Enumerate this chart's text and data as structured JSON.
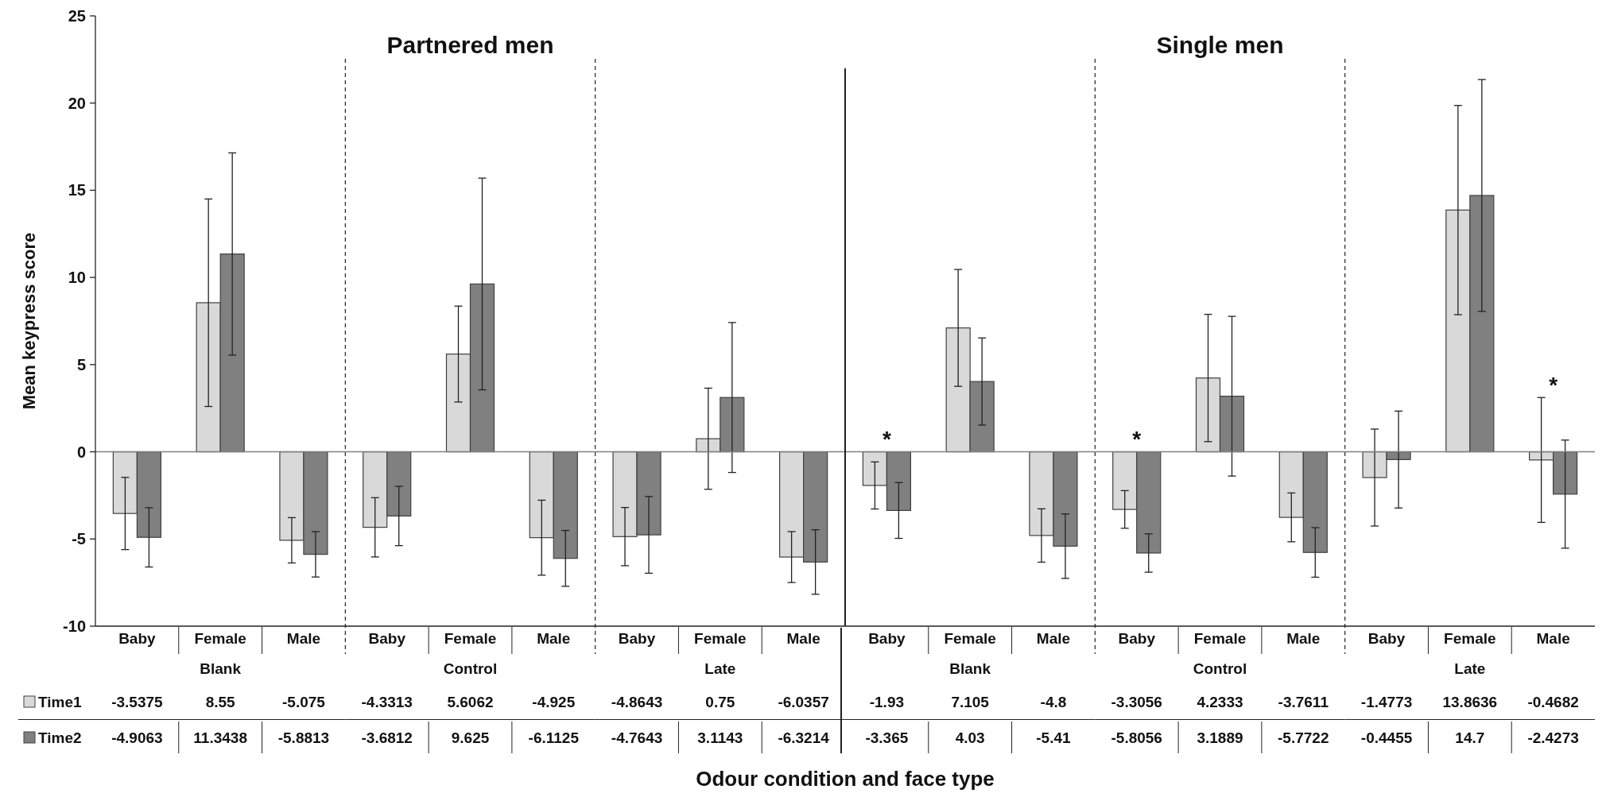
{
  "chart_data": [
    {
      "type": "bar",
      "ylabel": "Mean keypress score",
      "xlabel": "Blank",
      "categories": [
        "Baby",
        "Female",
        "Male"
      ],
      "series": [
        {
          "name": "Time1",
          "color": "#d9d9d9",
          "values": [
            -3.5375,
            8.55,
            -5.075
          ],
          "errors": [
            2.07,
            5.95,
            1.3
          ]
        },
        {
          "name": "Time2",
          "color": "#808080",
          "values": [
            -4.9063,
            11.3438,
            -5.8813
          ],
          "errors": [
            1.7,
            5.8,
            1.3
          ]
        }
      ],
      "ylim": [
        -10,
        25
      ],
      "yticks": [
        -10,
        -5,
        0,
        5,
        10,
        15,
        20,
        25
      ],
      "data_labels": true,
      "legend": "bottom",
      "annotations": [
        "Odour condition and face type"
      ]
    },
    {
      "type": "bar",
      "title": "Partnered men",
      "xlabel": "Control",
      "categories": [
        "Baby",
        "Female",
        "Male"
      ],
      "series": [
        {
          "color": "#d9d9d9",
          "values": [
            -4.3313,
            5.6062,
            -4.925
          ],
          "errors": [
            1.7,
            2.75,
            2.15
          ]
        },
        {
          "color": "#808080",
          "values": [
            -3.6812,
            9.625,
            -6.1125
          ],
          "errors": [
            1.7,
            6.07,
            1.6
          ]
        }
      ],
      "ylim": [
        -10,
        25
      ],
      "tick_labels": "x",
      "data_labels": true
    },
    {
      "type": "bar",
      "xlabel": "Late",
      "categories": [
        "Baby",
        "Female",
        "Male"
      ],
      "series": [
        {
          "color": "#d9d9d9",
          "values": [
            -4.8643,
            0.75,
            -6.0357
          ],
          "errors": [
            1.67,
            2.9,
            1.46
          ]
        },
        {
          "color": "#808080",
          "values": [
            -4.7643,
            3.1143,
            -6.3214
          ],
          "errors": [
            2.2,
            4.3,
            1.85
          ]
        }
      ],
      "ylim": [
        -10,
        25
      ],
      "tick_labels": "x",
      "data_labels": true
    },
    {
      "type": "bar",
      "xlabel": "Blank",
      "categories": [
        "Baby",
        "Female",
        "Male"
      ],
      "series": [
        {
          "color": "#d9d9d9",
          "values": [
            -1.93,
            7.105,
            -4.8
          ],
          "errors": [
            1.35,
            3.35,
            1.53
          ]
        },
        {
          "color": "#808080",
          "values": [
            -3.365,
            4.03,
            -5.41
          ],
          "errors": [
            1.6,
            2.5,
            1.85
          ]
        }
      ],
      "ylim": [
        -10,
        25
      ],
      "tick_labels": "x",
      "data_labels": true,
      "annotations": [
        "*"
      ]
    },
    {
      "type": "bar",
      "title": "Single men",
      "xlabel": "Control",
      "categories": [
        "Baby",
        "Female",
        "Male"
      ],
      "series": [
        {
          "color": "#d9d9d9",
          "values": [
            -3.3056,
            4.2333,
            -3.7611
          ],
          "errors": [
            1.08,
            3.65,
            1.4
          ]
        },
        {
          "color": "#808080",
          "values": [
            -5.8056,
            3.1889,
            -5.7722
          ],
          "errors": [
            1.1,
            4.58,
            1.42
          ]
        }
      ],
      "ylim": [
        -10,
        25
      ],
      "tick_labels": "x",
      "data_labels": true,
      "annotations": [
        "*"
      ]
    },
    {
      "type": "bar",
      "xlabel": "Late",
      "categories": [
        "Baby",
        "Female",
        "Male"
      ],
      "series": [
        {
          "color": "#d9d9d9",
          "values": [
            -1.4773,
            13.8636,
            -0.4682
          ],
          "errors": [
            2.78,
            6.0,
            3.58
          ]
        },
        {
          "color": "#808080",
          "values": [
            -0.4455,
            14.7,
            -2.4273
          ],
          "errors": [
            2.78,
            6.65,
            3.1
          ]
        }
      ],
      "ylim": [
        -10,
        25
      ],
      "tick_labels": "x",
      "data_labels": true,
      "annotations": [
        "*"
      ]
    }
  ]
}
